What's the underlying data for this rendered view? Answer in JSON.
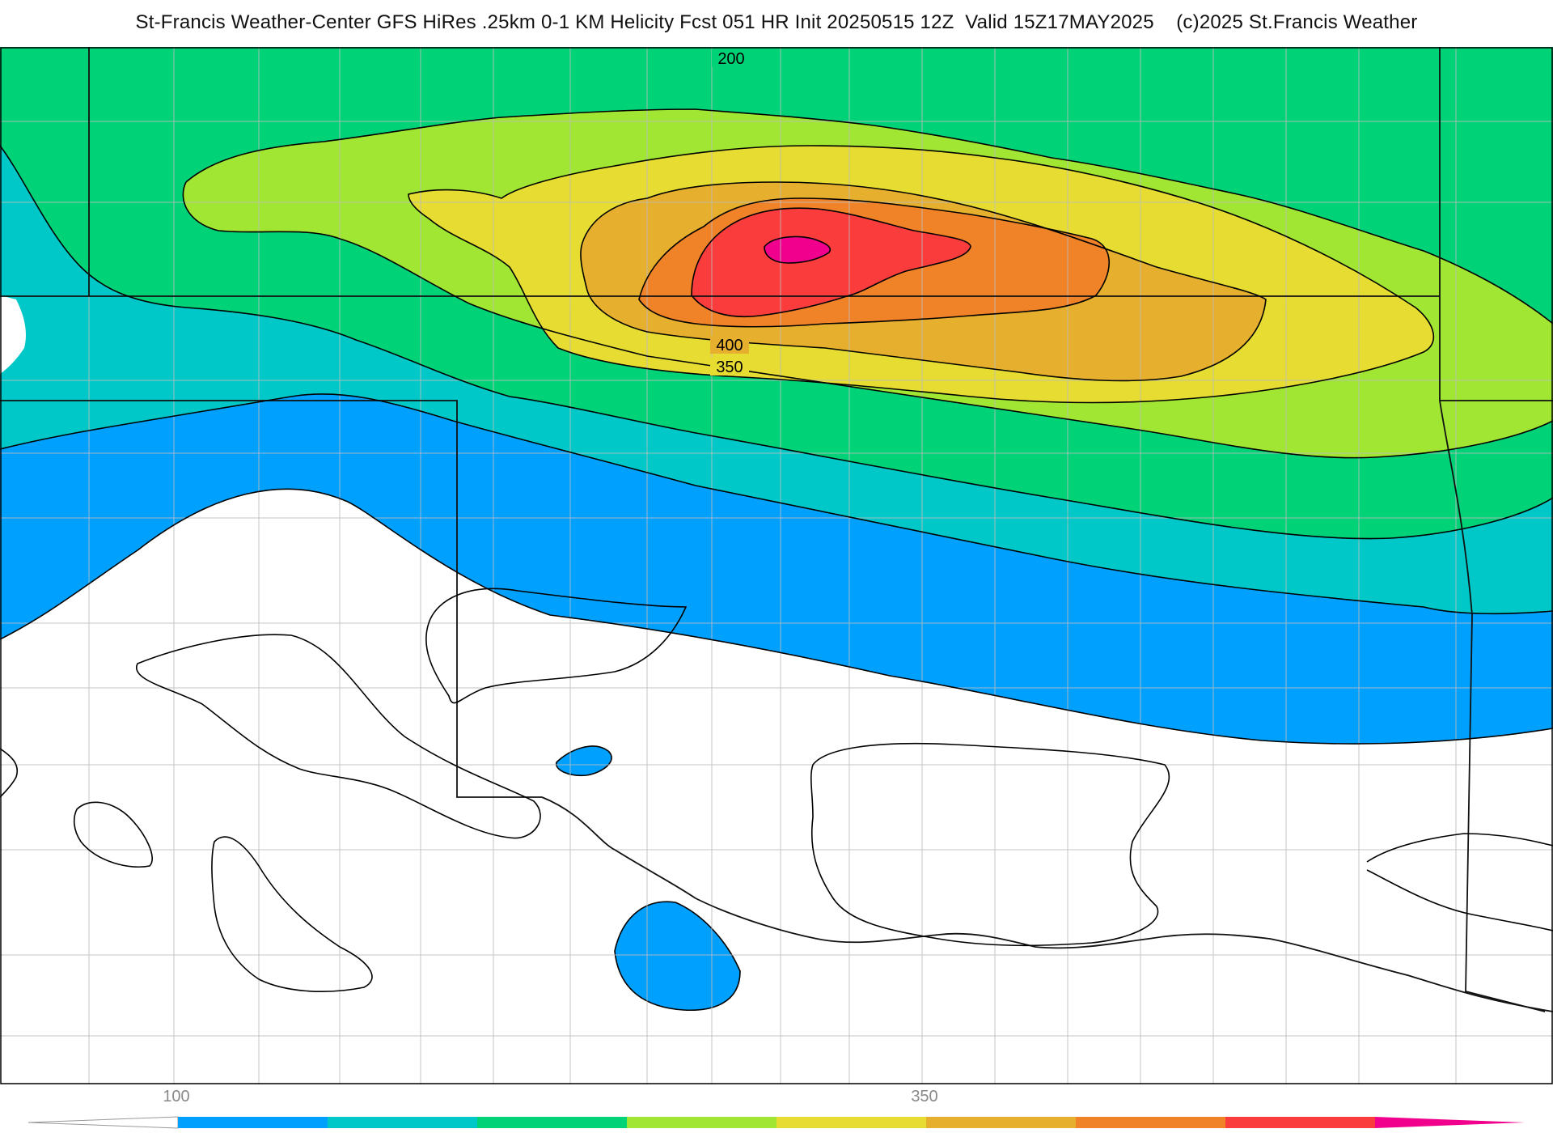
{
  "title": "St-Francis Weather-Center GFS HiRes .25km 0-1 KM Helicity Fcst 051 HR Init 20250515 12Z  Valid 15Z17MAY2025    (c)2025 St.Francis Weather",
  "contour_labels": [
    "200",
    "400",
    "350"
  ],
  "colorbar": {
    "tick_labels": [
      "100",
      "350"
    ],
    "colors": [
      "#ffffff",
      "#00a0ff",
      "#00c8c8",
      "#00d278",
      "#a0e632",
      "#e6dc32",
      "#e6af2d",
      "#f08228",
      "#fa3c3c",
      "#f0008c"
    ]
  },
  "map_colors": {
    "background": "#ffffff",
    "state_border": "#111111",
    "county_border": "#bdbdbd",
    "contour_line": "#000000"
  }
}
